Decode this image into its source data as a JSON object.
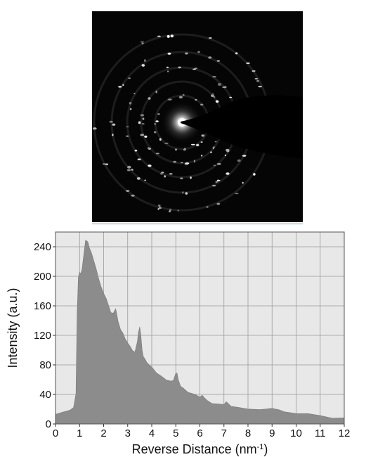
{
  "diffraction_image": {
    "background": "#050505",
    "beam_stop": "#000000"
  },
  "chart_data": {
    "type": "area",
    "title": "",
    "xlabel": "Reverse Distance (nm",
    "xlabel_superscript": "-1",
    "xlabel_suffix": ")",
    "ylabel": "Intensity (a.u.)",
    "xlim": [
      0,
      12
    ],
    "ylim": [
      0,
      260
    ],
    "xticks": [
      0,
      1,
      2,
      3,
      4,
      5,
      6,
      7,
      8,
      9,
      10,
      11,
      12
    ],
    "yticks": [
      0,
      40,
      80,
      120,
      160,
      200,
      240
    ],
    "grid": true,
    "fill_color": "#8c8c8c",
    "plot_background": "#e8e8e8",
    "series": [
      {
        "x": [
          0,
          0.3,
          0.6,
          0.75,
          0.85,
          0.9,
          0.95,
          1.0,
          1.05,
          1.1,
          1.2,
          1.25,
          1.3,
          1.35,
          1.4,
          1.5,
          1.6,
          1.7,
          1.8,
          1.9,
          2.0,
          2.1,
          2.2,
          2.3,
          2.4,
          2.5,
          2.55,
          2.6,
          2.7,
          2.8,
          2.9,
          3.0,
          3.1,
          3.2,
          3.3,
          3.4,
          3.45,
          3.5,
          3.55,
          3.6,
          3.65,
          3.7,
          3.8,
          3.9,
          4.0,
          4.2,
          4.4,
          4.6,
          4.8,
          4.9,
          5.0,
          5.05,
          5.1,
          5.2,
          5.3,
          5.5,
          5.8,
          6.0,
          6.1,
          6.2,
          6.3,
          6.5,
          6.8,
          7.0,
          7.1,
          7.3,
          7.6,
          8.0,
          8.5,
          9.0,
          9.3,
          9.5,
          10.0,
          10.5,
          11.0,
          11.5,
          12.0
        ],
        "y": [
          13,
          15,
          18,
          22,
          40,
          150,
          200,
          205,
          203,
          210,
          235,
          250,
          248,
          245,
          240,
          230,
          220,
          210,
          195,
          185,
          178,
          170,
          160,
          152,
          150,
          155,
          148,
          140,
          128,
          122,
          116,
          110,
          104,
          100,
          98,
          110,
          125,
          132,
          118,
          100,
          92,
          88,
          84,
          80,
          76,
          70,
          64,
          60,
          58,
          60,
          68,
          70,
          60,
          52,
          48,
          44,
          40,
          36,
          38,
          36,
          32,
          28,
          26,
          27,
          29,
          25,
          23,
          21,
          20,
          20,
          19,
          17,
          15,
          13,
          11,
          9,
          8
        ]
      }
    ]
  }
}
